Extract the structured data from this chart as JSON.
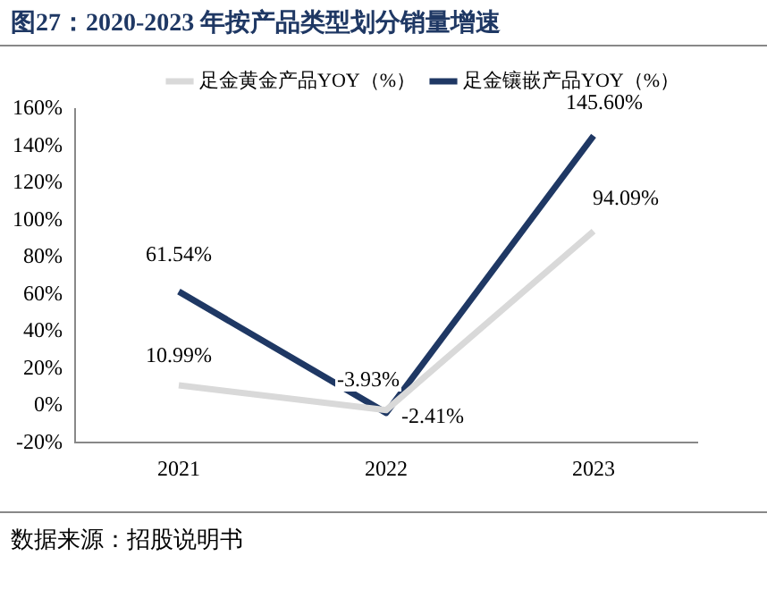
{
  "chart_data": {
    "type": "line",
    "title": "图27：2020-2023 年按产品类型划分销量增速",
    "annotations": [
      "数据来源：招股说明书"
    ],
    "categories": [
      "2021",
      "2022",
      "2023"
    ],
    "series": [
      {
        "name": "足金黄金产品YOY（%）",
        "color": "#d9d9d9",
        "values": [
          10.99,
          -2.41,
          94.09
        ],
        "value_labels": [
          "10.99%",
          "-2.41%",
          "94.09%"
        ]
      },
      {
        "name": "足金镶嵌产品YOY（%）",
        "color": "#1f3864",
        "values": [
          61.54,
          -3.93,
          145.6
        ],
        "value_labels": [
          "61.54%",
          "-3.93%",
          "145.60%"
        ]
      }
    ],
    "ylim": [
      -20,
      160
    ],
    "yticks": [
      {
        "value": -20,
        "label": "-20%"
      },
      {
        "value": 0,
        "label": "0%"
      },
      {
        "value": 20,
        "label": "20%"
      },
      {
        "value": 40,
        "label": "40%"
      },
      {
        "value": 60,
        "label": "60%"
      },
      {
        "value": 80,
        "label": "80%"
      },
      {
        "value": 100,
        "label": "100%"
      },
      {
        "value": 120,
        "label": "120%"
      },
      {
        "value": 140,
        "label": "140%"
      },
      {
        "value": 160,
        "label": "160%"
      }
    ],
    "grid": false,
    "legend": "top right",
    "marker": "none",
    "line_style": "solid"
  }
}
